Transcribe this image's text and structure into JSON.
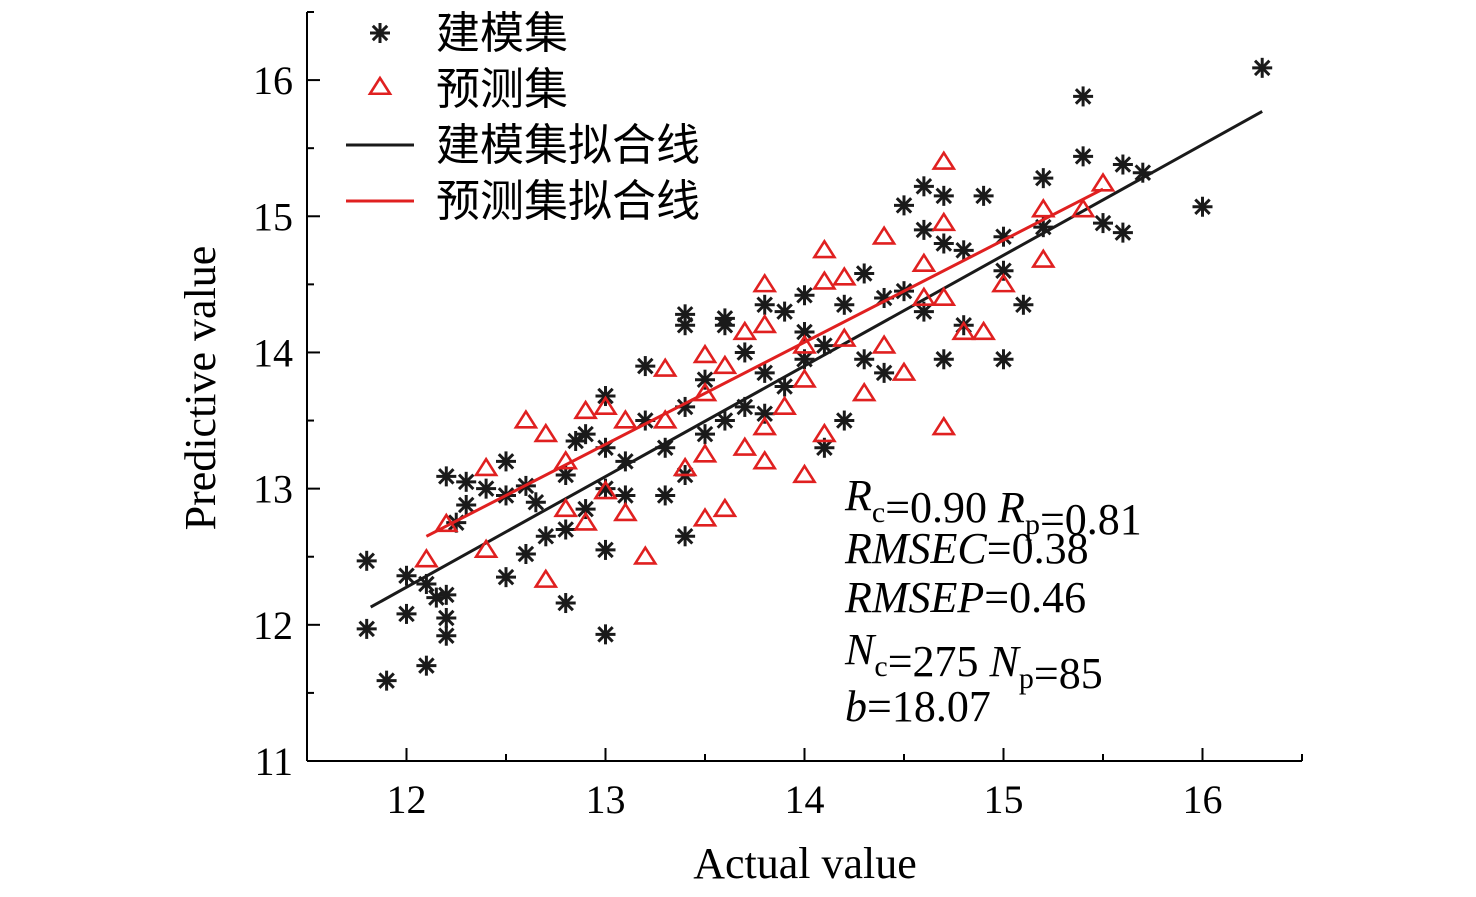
{
  "chart_data": {
    "type": "scatter",
    "title": "",
    "xlabel": "Actual value",
    "ylabel": "Predictive value",
    "xlim": [
      11.5,
      16.5
    ],
    "ylim": [
      11,
      16.5
    ],
    "xticks": [
      "12",
      "13",
      "14",
      "15",
      "16"
    ],
    "yticks": [
      "11",
      "12",
      "13",
      "14",
      "15",
      "16"
    ],
    "legend_position": "top-left",
    "grid": false,
    "colors": {
      "calibration": "#1a1a1a",
      "prediction": "#e02020"
    },
    "series": [
      {
        "name": "建模集",
        "marker": "asterisk",
        "points": [
          [
            11.8,
            12.47
          ],
          [
            11.8,
            11.97
          ],
          [
            11.9,
            11.59
          ],
          [
            12.0,
            12.36
          ],
          [
            12.0,
            12.08
          ],
          [
            12.1,
            11.7
          ],
          [
            12.1,
            12.3
          ],
          [
            12.15,
            12.2
          ],
          [
            12.2,
            11.92
          ],
          [
            12.2,
            12.05
          ],
          [
            12.2,
            12.22
          ],
          [
            12.2,
            13.09
          ],
          [
            12.25,
            12.75
          ],
          [
            12.3,
            12.88
          ],
          [
            12.3,
            13.05
          ],
          [
            12.4,
            13.0
          ],
          [
            12.5,
            12.35
          ],
          [
            12.5,
            12.95
          ],
          [
            12.5,
            13.2
          ],
          [
            12.6,
            12.52
          ],
          [
            12.6,
            13.02
          ],
          [
            12.65,
            12.9
          ],
          [
            12.7,
            12.65
          ],
          [
            12.8,
            12.16
          ],
          [
            12.8,
            12.7
          ],
          [
            12.8,
            13.1
          ],
          [
            12.85,
            13.35
          ],
          [
            12.9,
            12.85
          ],
          [
            12.9,
            13.4
          ],
          [
            13.0,
            11.93
          ],
          [
            13.0,
            12.55
          ],
          [
            13.0,
            13.0
          ],
          [
            13.0,
            13.3
          ],
          [
            13.0,
            13.68
          ],
          [
            13.1,
            12.95
          ],
          [
            13.1,
            13.2
          ],
          [
            13.2,
            13.5
          ],
          [
            13.2,
            13.9
          ],
          [
            13.3,
            12.95
          ],
          [
            13.3,
            13.3
          ],
          [
            13.4,
            12.65
          ],
          [
            13.4,
            13.1
          ],
          [
            13.4,
            13.6
          ],
          [
            13.4,
            14.2
          ],
          [
            13.4,
            14.28
          ],
          [
            13.5,
            13.4
          ],
          [
            13.5,
            13.8
          ],
          [
            13.6,
            14.2
          ],
          [
            13.6,
            14.25
          ],
          [
            13.6,
            13.5
          ],
          [
            13.7,
            13.6
          ],
          [
            13.7,
            14.0
          ],
          [
            13.8,
            13.85
          ],
          [
            13.8,
            14.35
          ],
          [
            13.8,
            13.55
          ],
          [
            13.9,
            14.3
          ],
          [
            13.9,
            13.75
          ],
          [
            14.0,
            13.95
          ],
          [
            14.0,
            14.42
          ],
          [
            14.0,
            14.15
          ],
          [
            14.1,
            13.3
          ],
          [
            14.1,
            14.05
          ],
          [
            14.2,
            13.5
          ],
          [
            14.2,
            14.35
          ],
          [
            14.3,
            14.58
          ],
          [
            14.3,
            13.95
          ],
          [
            14.4,
            14.4
          ],
          [
            14.4,
            13.85
          ],
          [
            14.5,
            14.45
          ],
          [
            14.5,
            15.08
          ],
          [
            14.6,
            15.22
          ],
          [
            14.6,
            14.9
          ],
          [
            14.6,
            14.3
          ],
          [
            14.7,
            13.95
          ],
          [
            14.7,
            14.8
          ],
          [
            14.7,
            15.15
          ],
          [
            14.8,
            14.2
          ],
          [
            14.8,
            14.75
          ],
          [
            14.9,
            15.15
          ],
          [
            15.0,
            13.95
          ],
          [
            15.0,
            14.6
          ],
          [
            15.0,
            14.85
          ],
          [
            15.1,
            14.35
          ],
          [
            15.2,
            15.28
          ],
          [
            15.2,
            14.92
          ],
          [
            15.4,
            15.44
          ],
          [
            15.4,
            15.88
          ],
          [
            15.5,
            14.95
          ],
          [
            15.6,
            14.88
          ],
          [
            15.6,
            15.38
          ],
          [
            15.7,
            15.32
          ],
          [
            16.0,
            15.07
          ],
          [
            16.3,
            16.09
          ]
        ]
      },
      {
        "name": "预测集",
        "marker": "triangle",
        "points": [
          [
            12.1,
            12.48
          ],
          [
            12.2,
            12.74
          ],
          [
            12.4,
            12.55
          ],
          [
            12.4,
            13.15
          ],
          [
            12.6,
            13.5
          ],
          [
            12.7,
            12.33
          ],
          [
            12.7,
            13.4
          ],
          [
            12.8,
            13.2
          ],
          [
            12.8,
            12.85
          ],
          [
            12.9,
            12.75
          ],
          [
            12.9,
            13.57
          ],
          [
            13.0,
            12.98
          ],
          [
            13.0,
            13.6
          ],
          [
            13.1,
            13.5
          ],
          [
            13.1,
            12.82
          ],
          [
            13.2,
            12.5
          ],
          [
            13.3,
            13.5
          ],
          [
            13.3,
            13.88
          ],
          [
            13.4,
            13.15
          ],
          [
            13.5,
            12.78
          ],
          [
            13.5,
            13.25
          ],
          [
            13.5,
            13.98
          ],
          [
            13.5,
            13.7
          ],
          [
            13.6,
            12.85
          ],
          [
            13.6,
            13.9
          ],
          [
            13.7,
            13.3
          ],
          [
            13.7,
            14.15
          ],
          [
            13.8,
            13.45
          ],
          [
            13.8,
            13.2
          ],
          [
            13.8,
            14.5
          ],
          [
            13.8,
            14.2
          ],
          [
            13.9,
            13.6
          ],
          [
            14.0,
            13.1
          ],
          [
            14.0,
            13.8
          ],
          [
            14.0,
            14.05
          ],
          [
            14.1,
            13.4
          ],
          [
            14.1,
            14.75
          ],
          [
            14.1,
            14.52
          ],
          [
            14.2,
            14.55
          ],
          [
            14.2,
            14.1
          ],
          [
            14.3,
            13.7
          ],
          [
            14.4,
            14.85
          ],
          [
            14.4,
            14.05
          ],
          [
            14.5,
            13.85
          ],
          [
            14.6,
            14.65
          ],
          [
            14.6,
            14.4
          ],
          [
            14.7,
            15.4
          ],
          [
            14.7,
            14.95
          ],
          [
            14.7,
            13.45
          ],
          [
            14.7,
            14.4
          ],
          [
            14.8,
            14.15
          ],
          [
            14.9,
            14.15
          ],
          [
            15.0,
            14.5
          ],
          [
            15.2,
            14.68
          ],
          [
            15.2,
            15.05
          ],
          [
            15.4,
            15.05
          ],
          [
            15.5,
            15.24
          ]
        ]
      },
      {
        "name": "建模集拟合线",
        "type": "line",
        "points": [
          [
            11.82,
            12.13
          ],
          [
            16.3,
            15.77
          ]
        ]
      },
      {
        "name": "预测集拟合线",
        "type": "line",
        "points": [
          [
            12.1,
            12.65
          ],
          [
            15.5,
            15.2
          ]
        ]
      }
    ],
    "annotation_lines": [
      [
        {
          "text": "R",
          "italic": true
        },
        {
          "text": "c",
          "sub": true
        },
        {
          "text": "=0.90  "
        },
        {
          "text": "R",
          "italic": true
        },
        {
          "text": "p",
          "sub": true
        },
        {
          "text": "=0.81"
        }
      ],
      [
        {
          "text": "RMSEC",
          "italic": true
        },
        {
          "text": "=0.38"
        }
      ],
      [
        {
          "text": "RMSEP",
          "italic": true
        },
        {
          "text": "=0.46"
        }
      ],
      [
        {
          "text": "N",
          "italic": true
        },
        {
          "text": "c",
          "sub": true
        },
        {
          "text": "=275  "
        },
        {
          "text": "N",
          "italic": true
        },
        {
          "text": "p",
          "sub": true
        },
        {
          "text": "=85"
        }
      ],
      [
        {
          "text": "b",
          "italic": true
        },
        {
          "text": "=18.07"
        }
      ]
    ]
  }
}
